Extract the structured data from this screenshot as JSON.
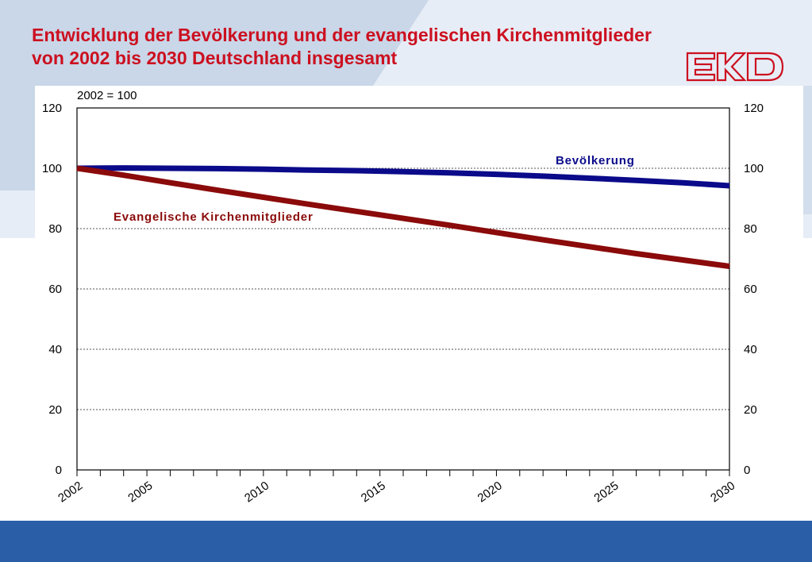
{
  "slide": {
    "title_line1": "Entwicklung der Bevölkerung und der evangelischen Kirchenmitglieder",
    "title_line2": "von 2002 bis 2030 Deutschland insgesamt",
    "logo_text": "EKD",
    "colors": {
      "title": "#cc1020",
      "footer": "#2a5ea7",
      "background_accent": "#c9d7e8"
    }
  },
  "chart_data": {
    "type": "line",
    "annotation": "2002 = 100",
    "xlim": [
      2002,
      2030
    ],
    "ylim": [
      0,
      120
    ],
    "yticks": [
      0,
      20,
      40,
      60,
      80,
      100,
      120
    ],
    "xtick_labels": [
      "2002",
      "2005",
      "2010",
      "2015",
      "2020",
      "2025",
      "2030"
    ],
    "grid": "horizontal dotted",
    "series": [
      {
        "name": "Bevölkerung",
        "color": "#0a0a8a",
        "x": [
          2002,
          2004,
          2006,
          2008,
          2010,
          2012,
          2014,
          2016,
          2018,
          2020,
          2022,
          2024,
          2026,
          2028,
          2030
        ],
        "values": [
          100,
          100.1,
          100,
          99.9,
          99.7,
          99.4,
          99.2,
          98.9,
          98.5,
          98,
          97.4,
          96.7,
          96,
          95.2,
          94.2
        ]
      },
      {
        "name": "Evangelische Kirchenmitglieder",
        "color": "#8b0a0a",
        "x": [
          2002,
          2004,
          2006,
          2008,
          2010,
          2012,
          2014,
          2016,
          2018,
          2020,
          2022,
          2024,
          2026,
          2028,
          2030
        ],
        "values": [
          100,
          97.7,
          95.2,
          92.8,
          90.4,
          88,
          85.7,
          83.4,
          81.1,
          78.7,
          76.3,
          74,
          71.7,
          69.6,
          67.5
        ]
      }
    ]
  }
}
